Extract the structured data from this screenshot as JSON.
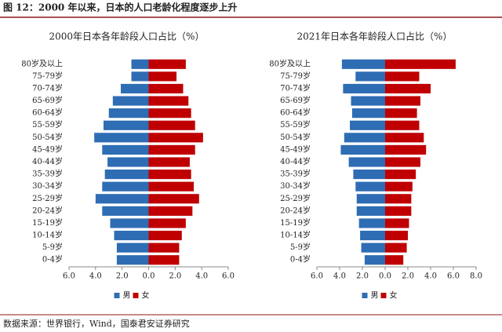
{
  "figure_title": "图 12：2000 年以来，日本的人口老龄化程度逐步上升",
  "source": "数据来源：世界银行，Wind，国泰君安证券研究",
  "chart_data": [
    {
      "type": "pyramid",
      "title": "2000年日本各年龄段人口占比（%）",
      "categories": [
        "80岁及以上",
        "75-79岁",
        "70-74岁",
        "65-69岁",
        "60-64岁",
        "55-59岁",
        "50-54岁",
        "45-49岁",
        "40-44岁",
        "35-39岁",
        "30-34岁",
        "25-29岁",
        "20-24岁",
        "15-19岁",
        "10-14岁",
        "5-9岁",
        "0-4岁"
      ],
      "series": [
        {
          "name": "男",
          "color": "#2e6db4",
          "values": [
            -1.3,
            -1.3,
            -2.1,
            -2.7,
            -3.0,
            -3.4,
            -4.1,
            -3.5,
            -3.1,
            -3.3,
            -3.5,
            -4.0,
            -3.5,
            -2.9,
            -2.6,
            -2.4,
            -2.4
          ]
        },
        {
          "name": "女",
          "color": "#c00000",
          "values": [
            2.8,
            2.1,
            2.6,
            3.0,
            3.2,
            3.5,
            4.1,
            3.5,
            3.1,
            3.2,
            3.4,
            3.8,
            3.3,
            2.8,
            2.5,
            2.3,
            2.3
          ]
        }
      ],
      "xlim": [
        -6,
        6
      ],
      "xticks": [
        {
          "value": -6,
          "label": "6.0"
        },
        {
          "value": -4,
          "label": "4.0"
        },
        {
          "value": -2,
          "label": "2.0"
        },
        {
          "value": 0,
          "label": "0.0"
        },
        {
          "value": 2,
          "label": "2.0"
        },
        {
          "value": 4,
          "label": "4.0"
        },
        {
          "value": 6,
          "label": "6.0"
        }
      ],
      "legend": "bottom"
    },
    {
      "type": "pyramid",
      "title": "2021年日本各年龄段人口占比（%）",
      "categories": [
        "80岁及以上",
        "75-79岁",
        "70-74岁",
        "65-69岁",
        "60-64岁",
        "55-59岁",
        "50-54岁",
        "45-49岁",
        "40-44岁",
        "35-39岁",
        "30-34岁",
        "25-29岁",
        "20-24岁",
        "15-19岁",
        "10-14岁",
        "5-9岁",
        "0-4岁"
      ],
      "series": [
        {
          "name": "男",
          "color": "#2e6db4",
          "values": [
            -3.8,
            -2.6,
            -3.7,
            -3.0,
            -2.9,
            -3.1,
            -3.6,
            -3.9,
            -3.2,
            -2.8,
            -2.6,
            -2.5,
            -2.5,
            -2.3,
            -2.2,
            -2.1,
            -1.8
          ]
        },
        {
          "name": "女",
          "color": "#c00000",
          "values": [
            6.2,
            3.0,
            4.0,
            3.1,
            2.8,
            3.0,
            3.4,
            3.6,
            3.1,
            2.7,
            2.4,
            2.3,
            2.3,
            2.1,
            2.0,
            1.9,
            1.6
          ]
        }
      ],
      "xlim": [
        -6,
        8
      ],
      "xticks": [
        {
          "value": -6,
          "label": "6.0"
        },
        {
          "value": -4,
          "label": "4.0"
        },
        {
          "value": -2,
          "label": "2.0"
        },
        {
          "value": 0,
          "label": "0.0"
        },
        {
          "value": 2,
          "label": "2.0"
        },
        {
          "value": 4,
          "label": "4.0"
        },
        {
          "value": 6,
          "label": "6.0"
        },
        {
          "value": 8,
          "label": "8.0"
        }
      ],
      "legend": "bottom"
    }
  ]
}
